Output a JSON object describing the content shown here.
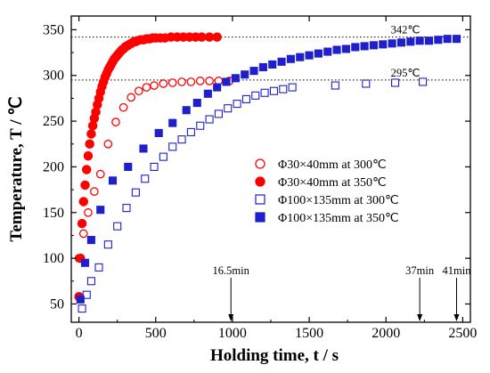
{
  "chart_data": {
    "type": "scatter",
    "xlabel": "Holding time, t / s",
    "ylabel": "Temperature, T / ℃",
    "xlim": [
      -50,
      2550
    ],
    "ylim": [
      30,
      365
    ],
    "xticks": [
      0,
      500,
      1000,
      1500,
      2000,
      2500
    ],
    "yticks": [
      50,
      100,
      150,
      200,
      250,
      300,
      350
    ],
    "grid": false,
    "legend_position": "center-right",
    "reference_lines": [
      {
        "y": 342,
        "label": "342℃",
        "style": "dotted"
      },
      {
        "y": 295,
        "label": "295℃",
        "style": "dotted"
      }
    ],
    "time_markers": [
      {
        "x": 990,
        "label": "16.5min"
      },
      {
        "x": 2220,
        "label": "37min"
      },
      {
        "x": 2460,
        "label": "41min"
      }
    ],
    "series": [
      {
        "name": "Φ30×40mm at 300℃",
        "marker": "circle-open",
        "color": "#ff0000",
        "x": [
          0,
          30,
          60,
          100,
          140,
          190,
          240,
          290,
          340,
          390,
          440,
          490,
          550,
          610,
          670,
          730,
          790,
          850,
          910,
          980
        ],
        "y": [
          100,
          127,
          150,
          173,
          192,
          225,
          249,
          265,
          276,
          283,
          287,
          289,
          291,
          292,
          293,
          293,
          294,
          294,
          294,
          294
        ]
      },
      {
        "name": "Φ30×40mm at 350℃",
        "marker": "circle-filled",
        "color": "#ff0000",
        "x": [
          0,
          10,
          20,
          30,
          40,
          50,
          60,
          70,
          80,
          90,
          100,
          110,
          120,
          130,
          140,
          150,
          160,
          170,
          180,
          190,
          200,
          210,
          220,
          230,
          240,
          250,
          260,
          270,
          280,
          290,
          300,
          310,
          320,
          330,
          340,
          350,
          360,
          370,
          380,
          400,
          420,
          440,
          460,
          480,
          500,
          530,
          560,
          600,
          640,
          680,
          720,
          760,
          800,
          850,
          900
        ],
        "y": [
          58,
          100,
          138,
          162,
          180,
          197,
          212,
          225,
          236,
          245,
          253,
          260,
          268,
          275,
          282,
          288,
          293,
          298,
          302,
          306,
          309,
          312,
          315,
          318,
          320,
          322,
          324,
          326,
          328,
          329,
          331,
          332,
          333,
          334,
          335,
          336,
          337,
          337,
          338,
          339,
          339,
          340,
          340,
          341,
          341,
          341,
          341,
          342,
          342,
          342,
          342,
          342,
          342,
          342,
          342
        ]
      },
      {
        "name": "Φ100×135mm at 300℃",
        "marker": "square-open",
        "color": "#1f1fcc",
        "x": [
          20,
          50,
          80,
          130,
          190,
          250,
          310,
          370,
          430,
          490,
          550,
          610,
          670,
          730,
          790,
          850,
          910,
          970,
          1030,
          1090,
          1150,
          1210,
          1270,
          1330,
          1390,
          1670,
          1870,
          2060,
          2240
        ],
        "y": [
          45,
          60,
          75,
          90,
          115,
          135,
          155,
          172,
          187,
          200,
          211,
          222,
          230,
          238,
          245,
          252,
          258,
          264,
          269,
          274,
          278,
          281,
          283,
          285,
          287,
          289,
          291,
          292,
          293
        ]
      },
      {
        "name": "Φ100×135mm at 350℃",
        "marker": "square-filled",
        "color": "#1f1fcc",
        "x": [
          10,
          40,
          80,
          140,
          220,
          320,
          420,
          520,
          610,
          700,
          770,
          840,
          900,
          960,
          1020,
          1080,
          1140,
          1200,
          1260,
          1320,
          1380,
          1440,
          1500,
          1560,
          1620,
          1680,
          1740,
          1800,
          1860,
          1920,
          1980,
          2040,
          2100,
          2160,
          2220,
          2280,
          2340,
          2400,
          2460
        ],
        "y": [
          55,
          95,
          120,
          153,
          185,
          200,
          220,
          237,
          248,
          262,
          270,
          280,
          287,
          293,
          297,
          301,
          305,
          309,
          312,
          315,
          318,
          320,
          322,
          324,
          326,
          328,
          329,
          331,
          332,
          333,
          334,
          335,
          336,
          337,
          338,
          338,
          339,
          340,
          340
        ]
      }
    ]
  }
}
